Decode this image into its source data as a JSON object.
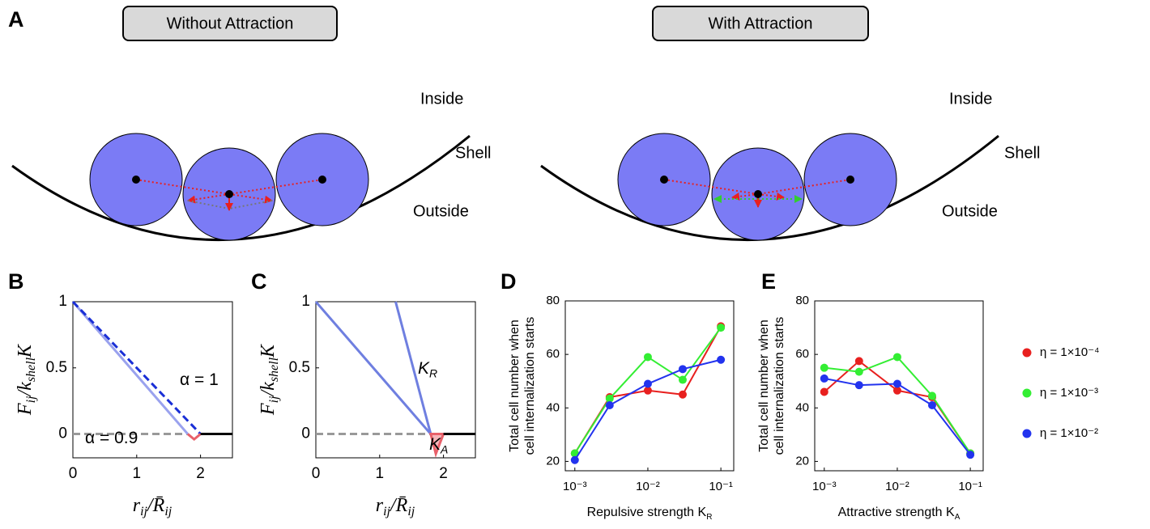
{
  "panel_a": {
    "label": "A",
    "left": {
      "title": "Without Attraction",
      "inside": "Inside",
      "shell": "Shell",
      "outside": "Outside"
    },
    "right": {
      "title": "With Attraction",
      "inside": "Inside",
      "shell": "Shell",
      "outside": "Outside"
    }
  },
  "chart_data": [
    {
      "type": "line",
      "label": "B",
      "math_labels": true,
      "xlabel": [
        "r",
        "ij",
        "/R̄",
        "ij"
      ],
      "ylabel": [
        "F",
        "ij",
        "/k",
        "shell",
        "K"
      ],
      "xlim": [
        0,
        2.5
      ],
      "ylim": [
        -0.18,
        1
      ],
      "xticks": [
        0,
        1,
        2
      ],
      "yticks": [
        0,
        0.5,
        1
      ],
      "annotations": [
        [
          "α = 1"
        ],
        [
          "α = 0.9"
        ]
      ],
      "series": [
        {
          "x": [
            0,
            1.8
          ],
          "values": [
            0,
            0
          ],
          "color": "#999999",
          "dash": true
        },
        {
          "x": [
            0,
            1.8
          ],
          "values": [
            1,
            0
          ],
          "color": "#9aa2ee"
        },
        {
          "x": [
            0,
            2
          ],
          "values": [
            1,
            0
          ],
          "color": "#1a2fd6",
          "dash": true
        },
        {
          "x": [
            1.8,
            1.9,
            2
          ],
          "values": [
            0,
            -0.04,
            0
          ],
          "color": "#e8606a"
        },
        {
          "x": [
            2,
            2.5
          ],
          "values": [
            0,
            0
          ],
          "color": "#000000"
        }
      ]
    },
    {
      "type": "line",
      "label": "C",
      "math_labels": true,
      "xlabel": [
        "r",
        "ij",
        "/R̄",
        "ij"
      ],
      "ylabel": [
        "F",
        "ij",
        "/k",
        "shell",
        "K"
      ],
      "xlim": [
        0,
        2.5
      ],
      "ylim": [
        -0.18,
        1
      ],
      "xticks": [
        0,
        1,
        2
      ],
      "yticks": [
        0,
        0.5,
        1
      ],
      "annotations": [
        [
          "K",
          "R"
        ],
        [
          "K",
          "A"
        ]
      ],
      "series": [
        {
          "x": [
            0,
            1.8
          ],
          "values": [
            0,
            0
          ],
          "color": "#999999",
          "dash": true
        },
        {
          "x": [
            0,
            1.8
          ],
          "values": [
            1,
            0
          ],
          "color": "#6f7fe0"
        },
        {
          "x": [
            1.25,
            1.8
          ],
          "values": [
            1,
            0
          ],
          "color": "#6f7fe0"
        },
        {
          "x": [
            1.8,
            1.88,
            2
          ],
          "values": [
            0,
            -0.15,
            0
          ],
          "color": "#e8606a",
          "fill": "#f5b5ba"
        },
        {
          "x": [
            2,
            2.5
          ],
          "values": [
            0,
            0
          ],
          "color": "#000000"
        }
      ]
    },
    {
      "type": "line",
      "label": "D",
      "markers": true,
      "xscale": "log",
      "xlabel": [
        "Repulsive strength K",
        "R"
      ],
      "ylabel": [
        "Total cell number when",
        "cell internalization starts"
      ],
      "x": [
        0.001,
        0.003,
        0.01,
        0.03,
        0.1
      ],
      "xlim": [
        0.00074,
        0.15
      ],
      "ylim": [
        16.5,
        80
      ],
      "xticks": [
        {
          "value": 0.001,
          "label": "10⁻³"
        },
        {
          "value": 0.01,
          "label": "10⁻²"
        },
        {
          "value": 0.1,
          "label": "10⁻¹"
        }
      ],
      "yticks": [
        20,
        40,
        60,
        80
      ],
      "series": [
        {
          "color": "#e8201f",
          "values": [
            23,
            44,
            46.5,
            45,
            70.5
          ]
        },
        {
          "color": "#33ee33",
          "values": [
            23,
            43.5,
            59,
            50.5,
            70
          ]
        },
        {
          "color": "#2233ee",
          "values": [
            20.5,
            41,
            49,
            54.5,
            58
          ]
        }
      ]
    },
    {
      "type": "line",
      "label": "E",
      "markers": true,
      "xscale": "log",
      "legend": "right",
      "xlabel": [
        "Attractive strength K",
        "A"
      ],
      "ylabel": [
        "Total cell number when",
        "cell internalization starts"
      ],
      "x": [
        0.001,
        0.003,
        0.01,
        0.03,
        0.1
      ],
      "xlim": [
        0.00074,
        0.15
      ],
      "ylim": [
        16.5,
        80
      ],
      "xticks": [
        {
          "value": 0.001,
          "label": "10⁻³"
        },
        {
          "value": 0.01,
          "label": "10⁻²"
        },
        {
          "value": 0.1,
          "label": "10⁻¹"
        }
      ],
      "yticks": [
        20,
        40,
        60,
        80
      ],
      "series": [
        {
          "name": "η = 1×10⁻⁴",
          "color": "#e8201f",
          "values": [
            46,
            57.5,
            46.5,
            44,
            23
          ]
        },
        {
          "name": "η = 1×10⁻³",
          "color": "#33ee33",
          "values": [
            55,
            53.5,
            59,
            44.5,
            23
          ]
        },
        {
          "name": "η = 1×10⁻²",
          "color": "#2233ee",
          "values": [
            51,
            48.5,
            49,
            41,
            22.5
          ]
        }
      ]
    }
  ]
}
